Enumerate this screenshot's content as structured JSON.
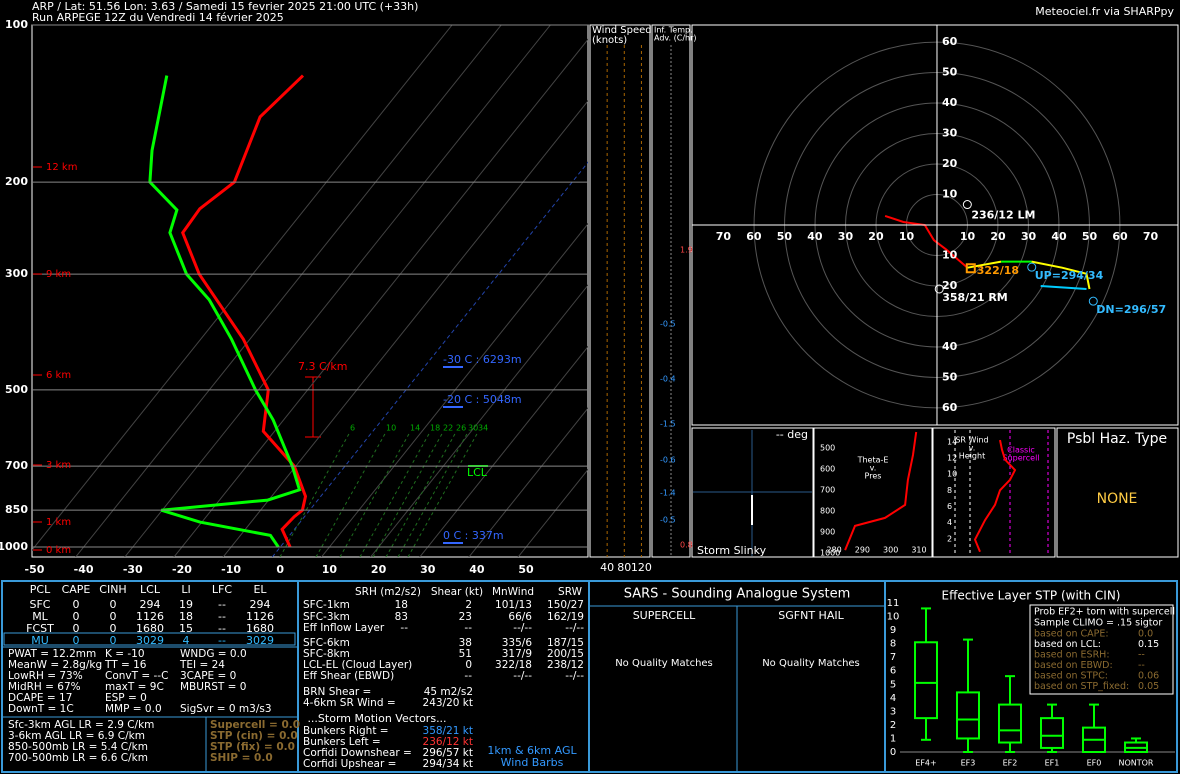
{
  "header": {
    "title": "ARP / Lat: 51.56 Lon: 3.63 / Samedi 15 fevrier 2025 21:00 UTC (+33h)",
    "run": "Run ARPEGE 12Z du Vendredi 14 février 2025",
    "credit": "Meteociel.fr via SHARPpy"
  },
  "chart_data": [
    {
      "type": "skewt",
      "log_y": true,
      "grid": true,
      "ylim": [
        100,
        1045
      ],
      "yticks": [
        100,
        200,
        300,
        500,
        700,
        850,
        1000
      ],
      "xlim": [
        -50.5,
        62.6
      ],
      "xticks": [
        -50,
        -40,
        -30,
        -20,
        -10,
        0,
        10,
        20,
        30,
        40,
        50
      ],
      "series": [
        {
          "color": "#ff0000",
          "pressure": [
            1000,
            925,
            875,
            850,
            800,
            700,
            600,
            500,
            400,
            300,
            250,
            225,
            200,
            150,
            125
          ],
          "values": [
            2.0,
            -2.5,
            -2.1,
            -1.5,
            -3.1,
            -10.3,
            -22.3,
            -28.0,
            -41.3,
            -60.9,
            -71.0,
            -71.4,
            -68.7,
            -74.1,
            -72.1
          ]
        },
        {
          "color": "#00ff00",
          "pressure": [
            1000,
            950,
            896,
            850,
            813,
            777,
            700,
            571,
            500,
            400,
            336,
            300,
            250,
            226,
            200,
            174,
            125
          ],
          "values": [
            -0.4,
            -3.9,
            -20.4,
            -30.2,
            -10.2,
            -5.4,
            -10.7,
            -22.1,
            -30.6,
            -43.7,
            -54.7,
            -63.5,
            -73.6,
            -75.9,
            -85.9,
            -90.6,
            -99.8
          ]
        }
      ],
      "height_labels": [
        "12 km",
        "9 km",
        "6 km",
        "3 km",
        "1 km",
        "0 km"
      ],
      "annotations": [
        "7.3 C/km",
        "-30 C : 6293m",
        "-20 C : 5048m",
        "0 C : 337m",
        "LCL"
      ],
      "mixing_ratio_labels": [
        6,
        10,
        14,
        18,
        22,
        26,
        30,
        34
      ]
    },
    {
      "type": "hodograph",
      "xlim": [
        -80.3,
        79
      ],
      "ylim": [
        -65.6,
        65.6
      ],
      "xticks": [
        {
          "value": -70,
          "label": "70"
        },
        {
          "value": -60,
          "label": "60"
        },
        {
          "value": -50,
          "label": "50"
        },
        {
          "value": -40,
          "label": "40"
        },
        {
          "value": -30,
          "label": "30"
        },
        {
          "value": -20,
          "label": "20"
        },
        {
          "value": -10,
          "label": "10"
        },
        10,
        20,
        30,
        40,
        50,
        60,
        70
      ],
      "yticks": [
        10,
        20,
        30,
        40,
        50,
        60,
        {
          "value": -10,
          "label": "10"
        },
        {
          "value": -20,
          "label": "20"
        },
        {
          "value": -40,
          "label": "40"
        },
        {
          "value": -50,
          "label": "50"
        },
        {
          "value": -60,
          "label": "60"
        }
      ],
      "segments": [
        {
          "color": "#ff0000",
          "u": [
            -17,
            -11,
            -4,
            -1,
            3,
            10
          ],
          "v": [
            3,
            1,
            0,
            -5,
            -8,
            -14
          ]
        },
        {
          "color": "#ffff00",
          "u": [
            10,
            21
          ],
          "v": [
            -14,
            -12
          ]
        },
        {
          "color": "#00ff00",
          "u": [
            21,
            31
          ],
          "v": [
            -12,
            -12
          ]
        },
        {
          "color": "#ffff00",
          "u": [
            31,
            41,
            49,
            50
          ],
          "v": [
            -12,
            -14,
            -16,
            -21
          ]
        },
        {
          "color": "#00ccff",
          "u": [
            34,
            49
          ],
          "v": [
            -20,
            -21
          ]
        }
      ],
      "motions": [
        {
          "label": "236/12 LM",
          "direction": 236,
          "speed": 12,
          "color": "#ffffff"
        },
        {
          "label": "322/18",
          "direction": 322,
          "speed": 18,
          "color": "#ff9900"
        },
        {
          "label": "UP=294/34",
          "direction": 294,
          "speed": 34,
          "color": "#33bbff"
        },
        {
          "label": "358/21 RM",
          "direction": 358,
          "speed": 21,
          "color": "#ffffff"
        },
        {
          "label": "DN=296/57",
          "direction": 296,
          "speed": 57,
          "color": "#33bbff"
        }
      ]
    },
    {
      "type": "box",
      "title": "Effective Layer STP (with CIN)",
      "color": "#00ff00",
      "ylim": [
        0,
        11
      ],
      "yticks": [
        0,
        1,
        2,
        3,
        4,
        5,
        6,
        7,
        8,
        9,
        10,
        11
      ],
      "categories": [
        "EF4+",
        "EF3",
        "EF2",
        "EF1",
        "EF0",
        "NONTOR"
      ],
      "whisker_low": [
        0.9,
        0,
        0,
        0,
        0,
        0
      ],
      "q1": [
        2.5,
        1.0,
        0.7,
        0.3,
        0,
        0
      ],
      "median": [
        5.1,
        2.4,
        1.6,
        1.2,
        0.9,
        0.3
      ],
      "q3": [
        8.1,
        4.4,
        3.5,
        2.5,
        1.8,
        0.7
      ],
      "whisker_high": [
        10.6,
        8.3,
        5.6,
        3.5,
        3.5,
        1.0
      ],
      "legend": {
        "lines": [
          "Prob EF2+ torn with supercell",
          "Sample CLIMO = .15 sigtor"
        ],
        "rows": [
          [
            "based on CAPE:",
            "0.0"
          ],
          [
            "based on LCL:",
            "0.15"
          ],
          [
            "based on ESRH:",
            "--"
          ],
          [
            "based on EBWD:",
            "--"
          ],
          [
            "based on STPC:",
            "0.06"
          ],
          [
            "based on STP_fixed:",
            "0.05"
          ]
        ]
      }
    },
    {
      "type": "theta_e",
      "title": [
        "Theta-E",
        "v.",
        "Pres"
      ],
      "color": "#ff0000",
      "xlim": [
        272.9,
        314.6
      ],
      "ylim": [
        405,
        1019
      ],
      "xticks": [
        280,
        290,
        300,
        310
      ],
      "yticks": [
        500,
        600,
        700,
        800,
        900,
        1000
      ],
      "pressure": [
        986,
        871,
        833,
        771,
        652,
        533,
        424
      ],
      "values": [
        283.9,
        287.4,
        298.0,
        305.1,
        306.1,
        307.9,
        309.0
      ]
    },
    {
      "type": "sr_wind",
      "title": [
        "SR Wind",
        "v.",
        "Height"
      ],
      "color": "#ff0000",
      "xlim": [
        0,
        80
      ],
      "ylim": [
        0,
        15.7
      ],
      "yticks": [
        2,
        4,
        6,
        8,
        10,
        12,
        14
      ],
      "height": [
        0.4,
        1.9,
        4.3,
        6.2,
        8.0,
        9.3,
        10.5,
        11.8,
        13.0,
        14.2
      ],
      "values": [
        30,
        26.7,
        33.3,
        40,
        43.3,
        50,
        53.3,
        46.7,
        44.7,
        43.3
      ],
      "annotation": [
        "Classic",
        "Supercell"
      ]
    }
  ],
  "wind_speed": {
    "title": [
      "Wind Speed",
      "(knots)"
    ],
    "xlim": [
      0,
      140
    ],
    "xticks": [
      40,
      80,
      120
    ]
  },
  "temp_adv": {
    "title": [
      "Inf. Temp.",
      "Adv. (C/hr)"
    ],
    "labels": [
      "1.9",
      "-0.5",
      "-0.4",
      "-1.5",
      "-0.6",
      "-1.4",
      "-0.5",
      "0.8"
    ]
  },
  "slinky": {
    "deg": "-- deg",
    "title": "Storm Slinky"
  },
  "hazard": {
    "title": "Psbl Haz. Type",
    "value": "NONE"
  },
  "parcels": {
    "header": [
      "PCL",
      "CAPE",
      "CINH",
      "LCL",
      "LI",
      "LFC",
      "EL"
    ],
    "rows": [
      [
        "SFC",
        "0",
        "0",
        "294",
        "19",
        "--",
        "294"
      ],
      [
        "ML",
        "0",
        "0",
        "1126",
        "18",
        "--",
        "1126"
      ],
      [
        "FCST",
        "0",
        "0",
        "1680",
        "15",
        "--",
        "1680"
      ],
      [
        "MU",
        "0",
        "0",
        "3029",
        "4",
        "--",
        "3029"
      ]
    ]
  },
  "indices": [
    [
      "PWAT = 12.2mm",
      "K = -10",
      "WNDG = 0.0"
    ],
    [
      "MeanW = 2.8g/kg",
      "TT = 16",
      "TEI = 24"
    ],
    [
      "LowRH = 73%",
      "ConvT = --C",
      "3CAPE = 0"
    ],
    [
      "MidRH = 67%",
      "maxT = 9C",
      "MBURST = 0"
    ],
    [
      "DCAPE = 17",
      "ESP = 0"
    ],
    [
      "DownT = 1C",
      "MMP = 0.0",
      "SigSvr = 0 m3/s3"
    ]
  ],
  "lapse_rates": [
    "Sfc-3km AGL LR = 2.9 C/km",
    "3-6km AGL LR = 6.9 C/km",
    "850-500mb LR = 5.4 C/km",
    "700-500mb LR = 6.6 C/km"
  ],
  "composites": [
    "Supercell = 0.0",
    "STP (cin) = 0.0",
    "STP (fix) = 0.0",
    "SHIP = 0.0"
  ],
  "kinematics": {
    "header": [
      "SRH (m2/s2)",
      "Shear (kt)",
      "MnWind",
      "SRW"
    ],
    "rows": [
      [
        "SFC-1km",
        "18",
        "2",
        "101/13",
        "150/27"
      ],
      [
        "SFC-3km",
        "83",
        "23",
        "66/6",
        "162/19"
      ],
      [
        "Eff Inflow Layer",
        "--",
        "--",
        "--/--",
        "--/--"
      ],
      [
        "SFC-6km",
        null,
        "38",
        "335/6",
        "187/15"
      ],
      [
        "SFC-8km",
        null,
        "51",
        "317/9",
        "200/15"
      ],
      [
        "LCL-EL (Cloud Layer)",
        null,
        "0",
        "322/18",
        "238/12"
      ],
      [
        "Eff Shear (EBWD)",
        null,
        "--",
        "--/--",
        "--/--"
      ]
    ],
    "extra": [
      [
        "BRN Shear =",
        "45 m2/s2"
      ],
      [
        "4-6km SR Wind =",
        "243/20 kt"
      ]
    ],
    "motions_title": "...Storm Motion Vectors...",
    "motions": [
      [
        "Bunkers Right =",
        "358/21 kt"
      ],
      [
        "Bunkers Left =",
        "236/12 kt"
      ],
      [
        "Corfidi Downshear =",
        "296/57 kt"
      ],
      [
        "Corfidi Upshear =",
        "294/34 kt"
      ]
    ],
    "barbs_note": [
      "1km & 6km AGL",
      "Wind Barbs"
    ]
  },
  "sars": {
    "title": "SARS - Sounding Analogue System",
    "columns": [
      "SUPERCELL",
      "SGFNT HAIL"
    ],
    "results": [
      "No Quality Matches",
      "No Quality Matches"
    ]
  }
}
